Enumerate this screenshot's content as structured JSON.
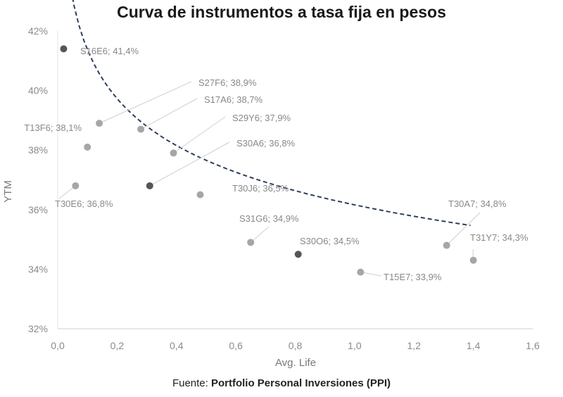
{
  "chart_data": {
    "type": "scatter",
    "title": "Curva de instrumentos a tasa fija en pesos",
    "xlabel": "Avg. Life",
    "ylabel": "YTM",
    "xlim": [
      0,
      1.6
    ],
    "ylim": [
      32,
      42
    ],
    "x_ticks": [
      "0,0",
      "0,2",
      "0,4",
      "0,6",
      "0,8",
      "1,0",
      "1,2",
      "1,4",
      "1,6"
    ],
    "y_ticks": [
      "32%",
      "34%",
      "36%",
      "38%",
      "40%",
      "42%"
    ],
    "grid": false,
    "points": [
      {
        "label": "S16E6; 41,4%",
        "x": 0.02,
        "y": 41.4,
        "color": "#555555"
      },
      {
        "label": "S27F6; 38,9%",
        "x": 0.14,
        "y": 38.9,
        "color": "#a6a6a6"
      },
      {
        "label": "S17A6; 38,7%",
        "x": 0.28,
        "y": 38.7,
        "color": "#a6a6a6"
      },
      {
        "label": "T13F6; 38,1%",
        "x": 0.1,
        "y": 38.1,
        "color": "#a6a6a6"
      },
      {
        "label": "S29Y6; 37,9%",
        "x": 0.39,
        "y": 37.9,
        "color": "#a6a6a6"
      },
      {
        "label": "S30A6; 36,8%",
        "x": 0.31,
        "y": 36.8,
        "color": "#555555"
      },
      {
        "label": "T30E6; 36,8%",
        "x": 0.06,
        "y": 36.8,
        "color": "#a6a6a6"
      },
      {
        "label": "T30J6; 36,5%",
        "x": 0.48,
        "y": 36.5,
        "color": "#a6a6a6"
      },
      {
        "label": "S31G6; 34,9%",
        "x": 0.65,
        "y": 34.9,
        "color": "#a6a6a6"
      },
      {
        "label": "S30O6; 34,5%",
        "x": 0.81,
        "y": 34.5,
        "color": "#555555"
      },
      {
        "label": "T15E7; 33,9%",
        "x": 1.02,
        "y": 33.9,
        "color": "#a6a6a6"
      },
      {
        "label": "T30A7; 34,8%",
        "x": 1.31,
        "y": 34.8,
        "color": "#a6a6a6"
      },
      {
        "label": "T31Y7; 34,3%",
        "x": 1.4,
        "y": 34.3,
        "color": "#a6a6a6"
      }
    ],
    "trendline": {
      "style": "dashed",
      "color": "#2f3e60"
    }
  },
  "source": {
    "prefix": "Fuente: ",
    "name": "Portfolio Personal Inversiones (PPI)"
  }
}
